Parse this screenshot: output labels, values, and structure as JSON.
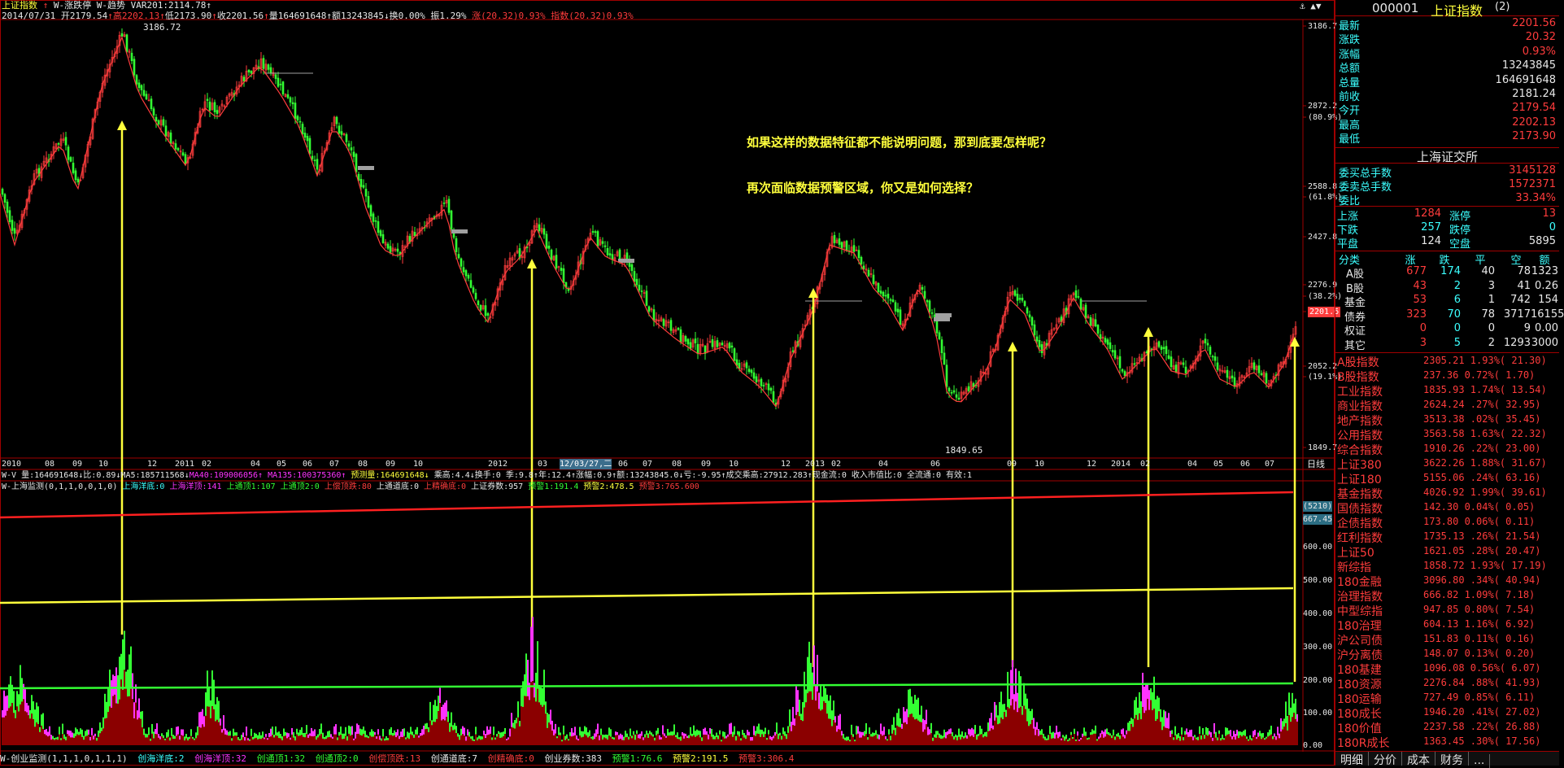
{
  "top_bar": {
    "title": "上证指数",
    "menu1": "W-涨跌停",
    "menu2": "W-趋势",
    "var_label": "VAR201:2114.78",
    "date": "2014/07/31",
    "open": "开2179.54",
    "high": "高2202.13",
    "low": "低2173.90",
    "close": "收2201.56",
    "volume": "量164691648",
    "amount": "额13243845",
    "turnover": "换0.00%",
    "amplitude": "振1.29%",
    "change": "涨(20.32)0.93%",
    "index_change": "指数(20.32)0.93%"
  },
  "price_axis": {
    "labels": [
      "3186.7",
      "2872.2",
      "(80.9%)",
      "2588.8",
      "(61.8%)",
      "2427.8",
      "2276.9",
      "(38.2%)",
      "2201.6",
      "2052.2",
      "(19.1%)",
      "1849.7"
    ],
    "high_mark": "3186.72",
    "low_mark": "1849.65"
  },
  "date_axis": {
    "labels": [
      "2010",
      "08",
      "09",
      "10",
      "12",
      "2011",
      "02",
      "04",
      "05",
      "06",
      "07",
      "08",
      "09",
      "10",
      "2012",
      "03",
      "12/03/27,二",
      "06",
      "07",
      "08",
      "09",
      "10",
      "12",
      "2013",
      "02",
      "04",
      "06",
      "09",
      "10",
      "12",
      "2014",
      "02",
      "04",
      "05",
      "06",
      "07"
    ],
    "period": "日线"
  },
  "indicator_bar": {
    "vol": "W-V 量:164691648↓比:0.89↓MA5:185711568↓",
    "ma40": "MA40:109006056↑",
    "ma135": "MA135:100375360↑",
    "pred": "预测量:164691648↓",
    "rest": "乘高:4.4↓换手:0 季:9.8↑年:12.4↑涨幅:0.9↑额:13243845.0↓亏:-9.95↑成交乘高:27912.283↑现金流:0 收入市值比:0 全流通:0 有效:1"
  },
  "monitor_bar": {
    "name": "W-上海监测(0,1,1,0,0,1,0)",
    "a": "上海洋底:0",
    "b": "上海洋顶:141",
    "c": "上通顶1:107",
    "d": "上通顶2:0",
    "e": "上偿顶跌:80",
    "f": "上通道底:0",
    "g": "上精确底:0",
    "h": "上证券数:957",
    "i": "预警1:191.4",
    "j": "预警2:478.5",
    "k": "预警3:765.600"
  },
  "monitor_axis": {
    "labels": [
      "(5210)",
      "667.45",
      "600.00",
      "500.00",
      "400.00",
      "300.00",
      "200.00",
      "100.00",
      "0.00"
    ]
  },
  "bottom_bar": {
    "name": "W-创业监测(1,1,1,0,1,1,1)",
    "a": "创海洋底:2",
    "b": "创海洋顶:32",
    "c": "创通顶1:32",
    "d": "创通顶2:0",
    "e": "创偿顶跌:13",
    "f": "创通道底:7",
    "g": "创精确底:0",
    "h": "创业券数:383",
    "i": "预警1:76.6",
    "j": "预警2:191.5",
    "k": "预警3:306.4"
  },
  "annotations": {
    "line1": "如果这样的数据特征都不能说明问题，那到底要怎样呢？",
    "line2": "再次面临数据预警区域，你又是如何选择？"
  },
  "quote_panel": {
    "code": "000001",
    "name": "上证指数",
    "suffix": "(2)",
    "rows": [
      {
        "label": "最新",
        "value": "2201.56",
        "color": "red"
      },
      {
        "label": "涨跌",
        "value": "20.32",
        "color": "red"
      },
      {
        "label": "涨幅",
        "value": "0.93%",
        "color": "red"
      },
      {
        "label": "总额",
        "value": "13243845",
        "color": "white"
      },
      {
        "label": "总量",
        "value": "164691648",
        "color": "white"
      },
      {
        "label": "前收",
        "value": "2181.24",
        "color": "white"
      },
      {
        "label": "今开",
        "value": "2179.54",
        "color": "red"
      },
      {
        "label": "最高",
        "value": "2202.13",
        "color": "red"
      },
      {
        "label": "最低",
        "value": "2173.90",
        "color": "red"
      }
    ],
    "exchange": "上海证交所",
    "orders": [
      {
        "label": "委买总手数",
        "value": "3145128",
        "color": "red"
      },
      {
        "label": "委卖总手数",
        "value": "1572371",
        "color": "red"
      },
      {
        "label": "委比",
        "value": "33.34%",
        "color": "red"
      }
    ],
    "breadth": [
      {
        "l1": "上涨",
        "v1": "1284",
        "l2": "涨停",
        "v2": "13",
        "c": "red"
      },
      {
        "l1": "下跌",
        "v1": "257",
        "l2": "跌停",
        "v2": "0",
        "c": "cyan"
      },
      {
        "l1": "平盘",
        "v1": "124",
        "l2": "空盘",
        "v2": "5895",
        "c": "white"
      }
    ],
    "table_header": [
      "分类",
      "涨",
      "跌",
      "平",
      "空",
      "额"
    ],
    "table_rows": [
      [
        "A股",
        "677",
        "174",
        "40",
        "78",
        "1323"
      ],
      [
        "B股",
        "43",
        "2",
        "3",
        "41",
        "0.26"
      ],
      [
        "基金",
        "53",
        "6",
        "1",
        "742",
        "154"
      ],
      [
        "债券",
        "323",
        "70",
        "78",
        "3717",
        "16155"
      ],
      [
        "权证",
        "0",
        "0",
        "0",
        "9",
        "0.00"
      ],
      [
        "其它",
        "3",
        "5",
        "2",
        "1293",
        "3000"
      ]
    ],
    "indices": [
      {
        "name": "A股指数",
        "value": "2305.21 1.93%( 21.30)"
      },
      {
        "name": "B股指数",
        "value": "237.36 0.72%( 1.70)"
      },
      {
        "name": "工业指数",
        "value": "1835.93 1.74%( 13.54)"
      },
      {
        "name": "商业指数",
        "value": "2624.24 .27%( 32.95)"
      },
      {
        "name": "地产指数",
        "value": "3513.38 .02%( 35.45)"
      },
      {
        "name": "公用指数",
        "value": "3563.58 1.63%( 22.32)"
      },
      {
        "name": "综合指数",
        "value": "1910.26 .22%( 23.00)"
      },
      {
        "name": "上证380",
        "value": "3622.26 1.88%( 31.67)"
      },
      {
        "name": "上证180",
        "value": "5155.06 .24%( 63.16)"
      },
      {
        "name": "基金指数",
        "value": "4026.92 1.99%( 39.61)"
      },
      {
        "name": "国债指数",
        "value": "142.30 0.04%( 0.05)"
      },
      {
        "name": "企债指数",
        "value": "173.80 0.06%( 0.11)"
      },
      {
        "name": "红利指数",
        "value": "1735.13 .26%( 21.54)"
      },
      {
        "name": "上证50",
        "value": "1621.05 .28%( 20.47)"
      },
      {
        "name": "新综指",
        "value": "1858.72 1.93%( 17.19)"
      },
      {
        "name": "180金融",
        "value": "3096.80 .34%( 40.94)"
      },
      {
        "name": "治理指数",
        "value": "666.82 1.09%( 7.18)"
      },
      {
        "name": "中型综指",
        "value": "947.85 0.80%( 7.54)"
      },
      {
        "name": "180治理",
        "value": "604.13 1.16%( 6.92)"
      },
      {
        "name": "沪公司债",
        "value": "151.83 0.11%( 0.16)"
      },
      {
        "name": "沪分离债",
        "value": "148.07 0.13%( 0.20)"
      },
      {
        "name": "180基建",
        "value": "1096.08 0.56%( 6.07)"
      },
      {
        "name": "180资源",
        "value": "2276.84 .88%( 41.93)"
      },
      {
        "name": "180运输",
        "value": "727.49 0.85%( 6.11)"
      },
      {
        "name": "180成长",
        "value": "1946.20 .41%( 27.02)"
      },
      {
        "name": "180价值",
        "value": "2237.58 .22%( 26.88)"
      },
      {
        "name": "180R成长",
        "value": "1363.45 .30%( 17.56)"
      }
    ],
    "tabs": [
      "明细",
      "分价",
      "成本",
      "财务",
      "..."
    ]
  },
  "colors": {
    "up": "#ff3c3c",
    "down": "#33ff33",
    "ma": "#33ff33",
    "arrow": "#ffff3c",
    "grid": "#a00000"
  }
}
